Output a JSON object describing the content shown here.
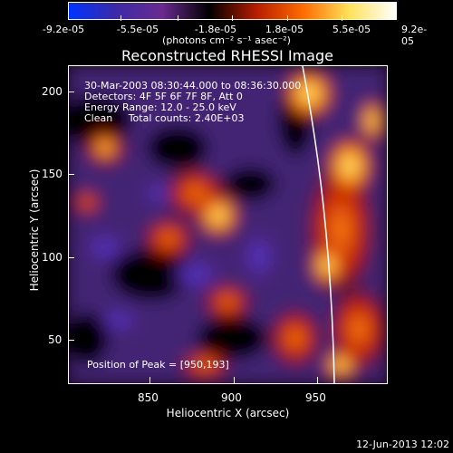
{
  "colorbar": {
    "tick_labels": [
      "-9.2e-05",
      "-5.5e-05",
      "-1.8e-05",
      "1.8e-05",
      "5.5e-05",
      "9.2e-05"
    ],
    "units": "(photons cm⁻² s⁻¹ asec⁻²)",
    "colors": [
      "#0033ff",
      "#3b2aa8",
      "#6a2a90",
      "#000000",
      "#b51c00",
      "#ff6a00",
      "#ffe15a",
      "#ffffff"
    ]
  },
  "image": {
    "title": "Reconstructed RHESSI Image",
    "info": {
      "time_range": "30-Mar-2003 08:30:44.000 to 08:36:30.000",
      "detectors": "Detectors: 4F 5F 6F 7F 8F, Att 0",
      "energy_range": "Energy Range: 12.0 - 25.0 keV",
      "method_counts": "Clean     Total counts: 2.40E+03"
    },
    "peak_position": "Position of Peak = [950,193]"
  },
  "axes": {
    "xlabel": "Heliocentric X (arcsec)",
    "ylabel": "Heliocentric Y (arcsec)",
    "x_ticks": [
      "850",
      "900",
      "950"
    ],
    "y_ticks": [
      "200",
      "150",
      "100",
      "50"
    ]
  },
  "footer": {
    "timestamp": "12-Jun-2013 12:02"
  }
}
